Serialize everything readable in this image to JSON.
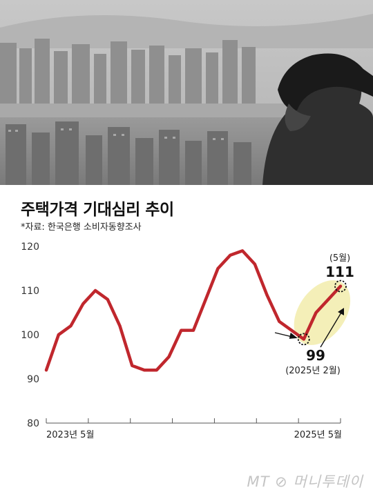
{
  "header": {
    "title": "주택가격 기대심리 추이",
    "source": "*자료: 한국은행 소비자동향조사"
  },
  "branding": {
    "logo_text": "MT 머니투데이"
  },
  "colors": {
    "line": "#c0272d",
    "highlight": "#f4efb8",
    "axis": "#555555"
  },
  "chart_data": {
    "type": "line",
    "title": "주택가격 기대심리 추이",
    "xlabel": "",
    "ylabel": "",
    "ylim": [
      80,
      120
    ],
    "yticks": [
      80,
      90,
      100,
      110,
      120
    ],
    "x_tick_labels": {
      "first": "2023년 5월",
      "last": "2025년 5월"
    },
    "grid": false,
    "legend": "none",
    "series": [
      {
        "values": [
          92,
          100,
          102,
          107,
          110,
          108,
          102,
          93,
          92,
          92,
          95,
          101,
          101,
          108,
          115,
          118,
          119,
          116,
          109,
          103,
          101,
          99,
          105,
          108,
          111
        ]
      }
    ],
    "annotations": {
      "low": {
        "value": "99",
        "label": "(2025년 2월)"
      },
      "high": {
        "value": "111",
        "label": "(5월)"
      }
    }
  }
}
